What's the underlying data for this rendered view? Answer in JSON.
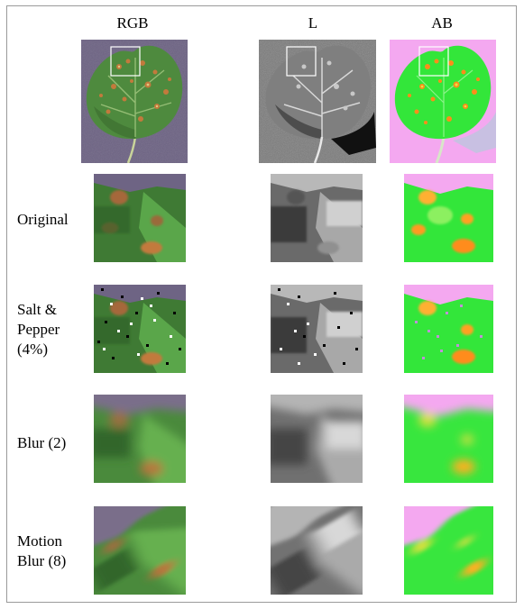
{
  "figure": {
    "columns": [
      {
        "id": "rgb",
        "label": "RGB"
      },
      {
        "id": "l",
        "label": "L"
      },
      {
        "id": "ab",
        "label": "AB"
      }
    ],
    "rows": [
      {
        "id": "original",
        "lines": [
          "Original"
        ]
      },
      {
        "id": "salt_pepper",
        "lines": [
          "Salt &",
          "Pepper",
          "(4%)"
        ]
      },
      {
        "id": "blur",
        "lines": [
          "Blur (2)"
        ]
      },
      {
        "id": "motion_blur",
        "lines": [
          "Motion",
          "Blur (8)"
        ]
      }
    ],
    "colors": {
      "rgb_background": "#6e6484",
      "leaf_green": "#4e8a3e",
      "lesion_brown": "#b5713a",
      "ab_background": "#f4a8f0",
      "ab_green": "#33e63a",
      "ab_lesion": "#ff8c1a",
      "frame_border": "#9a9a9a"
    }
  }
}
